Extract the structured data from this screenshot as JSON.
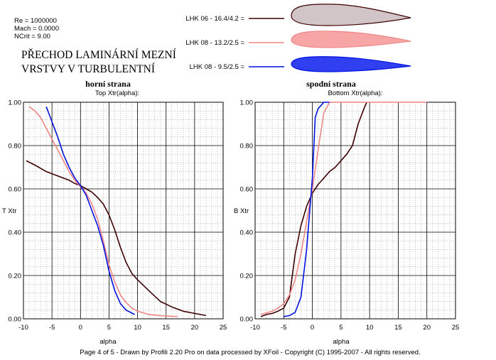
{
  "params": [
    "Re = 1000000",
    "Mach = 0.0000",
    "NCrit = 9.00"
  ],
  "headline": [
    "PŘECHOD  LAMINÁRNÍ  MEZNÍ",
    "VRSTVY  V  TURBULENTNÍ"
  ],
  "legend": [
    {
      "label": "LHK  06  -  16.4/4.2 =",
      "color": "#3d0000",
      "fill": "#d2c5c8"
    },
    {
      "label": "LHK 08 - 13.2/2.5 =",
      "color": "#f08585",
      "fill": "#f7a5a5"
    },
    {
      "label": "LHK  08 - 9.5/2.5 =",
      "color": "#0010e0",
      "fill": "#3040f0"
    }
  ],
  "footer": "Page 4 of 5   -   Drawn by Profili 2.20 Pro on data processed by  XFoil - Copyright (C) 1995-2007 - All rights reserved.",
  "chart_data": [
    {
      "type": "line",
      "title": "horní strana",
      "subtitle": "Top Xtr(alpha):",
      "xlabel": "alpha",
      "ylabel": "T Xtr",
      "xlim": [
        -10,
        25
      ],
      "ylim": [
        0,
        1
      ],
      "xticks": [
        "-10",
        "-5",
        "0",
        "5",
        "10",
        "15",
        "20",
        "25"
      ],
      "yticks": [
        "0.00",
        "0.20",
        "0.40",
        "0.60",
        "0.80",
        "1.00"
      ],
      "grid": true,
      "series": [
        {
          "name": "LHK  06  -  16.4/4.2",
          "color": "#3d0000",
          "points": [
            [
              -9.5,
              0.73
            ],
            [
              -8,
              0.71
            ],
            [
              -6,
              0.68
            ],
            [
              -4,
              0.66
            ],
            [
              -2,
              0.64
            ],
            [
              -1,
              0.625
            ],
            [
              0,
              0.615
            ],
            [
              1,
              0.6
            ],
            [
              2,
              0.585
            ],
            [
              3,
              0.56
            ],
            [
              4,
              0.53
            ],
            [
              5,
              0.48
            ],
            [
              6,
              0.41
            ],
            [
              7,
              0.33
            ],
            [
              8,
              0.26
            ],
            [
              9,
              0.21
            ],
            [
              10,
              0.18
            ],
            [
              12,
              0.13
            ],
            [
              14,
              0.08
            ],
            [
              16,
              0.055
            ],
            [
              18,
              0.035
            ],
            [
              20,
              0.025
            ],
            [
              22,
              0.015
            ]
          ]
        },
        {
          "name": "LHK 08 - 13.2/2.5",
          "color": "#f08585",
          "points": [
            [
              -9,
              0.98
            ],
            [
              -8,
              0.96
            ],
            [
              -7,
              0.93
            ],
            [
              -6,
              0.88
            ],
            [
              -5,
              0.83
            ],
            [
              -4,
              0.78
            ],
            [
              -3,
              0.73
            ],
            [
              -2,
              0.68
            ],
            [
              -1,
              0.64
            ],
            [
              0,
              0.61
            ],
            [
              1,
              0.58
            ],
            [
              2,
              0.53
            ],
            [
              3,
              0.46
            ],
            [
              4,
              0.36
            ],
            [
              5,
              0.25
            ],
            [
              6,
              0.17
            ],
            [
              7,
              0.11
            ],
            [
              8,
              0.075
            ],
            [
              9,
              0.05
            ],
            [
              10,
              0.035
            ],
            [
              12,
              0.02
            ],
            [
              14,
              0.015
            ],
            [
              17,
              0.01
            ]
          ]
        },
        {
          "name": "LHK 08 - 9.5/2.5",
          "color": "#0010e0",
          "points": [
            [
              -6,
              0.98
            ],
            [
              -5,
              0.91
            ],
            [
              -4,
              0.84
            ],
            [
              -3,
              0.76
            ],
            [
              -2,
              0.7
            ],
            [
              -1,
              0.65
            ],
            [
              0,
              0.615
            ],
            [
              1,
              0.57
            ],
            [
              2,
              0.5
            ],
            [
              3,
              0.43
            ],
            [
              4,
              0.34
            ],
            [
              5,
              0.22
            ],
            [
              6,
              0.13
            ],
            [
              7,
              0.07
            ],
            [
              8,
              0.04
            ],
            [
              9.5,
              0.02
            ]
          ]
        }
      ]
    },
    {
      "type": "line",
      "title": "spodní strana",
      "subtitle": "Bottom Xtr(alpha):",
      "xlabel": "alpha",
      "ylabel": "B Xtr",
      "xlim": [
        -10,
        25
      ],
      "ylim": [
        0,
        1
      ],
      "xticks": [
        "-10",
        "-5",
        "0",
        "5",
        "10",
        "15",
        "20",
        "25"
      ],
      "yticks": [
        "0.00",
        "0.20",
        "0.40",
        "0.60",
        "0.80",
        "1.00"
      ],
      "grid": true,
      "series": [
        {
          "name": "LHK  06  -  16.4/4.2",
          "color": "#3d0000",
          "points": [
            [
              -9,
              0.01
            ],
            [
              -8,
              0.02
            ],
            [
              -7,
              0.025
            ],
            [
              -6,
              0.035
            ],
            [
              -5,
              0.05
            ],
            [
              -4,
              0.1
            ],
            [
              -3,
              0.3
            ],
            [
              -2,
              0.43
            ],
            [
              -1,
              0.52
            ],
            [
              0,
              0.58
            ],
            [
              1,
              0.62
            ],
            [
              2,
              0.65
            ],
            [
              3,
              0.68
            ],
            [
              4,
              0.7
            ],
            [
              5,
              0.73
            ],
            [
              6,
              0.76
            ],
            [
              7,
              0.8
            ],
            [
              8,
              0.9
            ],
            [
              9,
              0.97
            ],
            [
              9.5,
              1.0
            ]
          ]
        },
        {
          "name": "LHK 08 - 13.2/2.5",
          "color": "#f08585",
          "points": [
            [
              -9,
              0.02
            ],
            [
              -7,
              0.035
            ],
            [
              -6,
              0.05
            ],
            [
              -5,
              0.07
            ],
            [
              -4,
              0.11
            ],
            [
              -3,
              0.18
            ],
            [
              -2,
              0.3
            ],
            [
              -1,
              0.45
            ],
            [
              0,
              0.6
            ],
            [
              1,
              0.78
            ],
            [
              2,
              0.95
            ],
            [
              3,
              1.0
            ],
            [
              20,
              1.0
            ]
          ]
        },
        {
          "name": "LHK 08 - 9.5/2.5",
          "color": "#0010e0",
          "points": [
            [
              -5,
              0.01
            ],
            [
              -4,
              0.015
            ],
            [
              -3,
              0.03
            ],
            [
              -2,
              0.1
            ],
            [
              -1,
              0.32
            ],
            [
              0,
              0.65
            ],
            [
              0.5,
              0.93
            ],
            [
              1,
              0.97
            ],
            [
              2,
              1.0
            ],
            [
              3,
              1.0
            ]
          ]
        }
      ]
    }
  ]
}
